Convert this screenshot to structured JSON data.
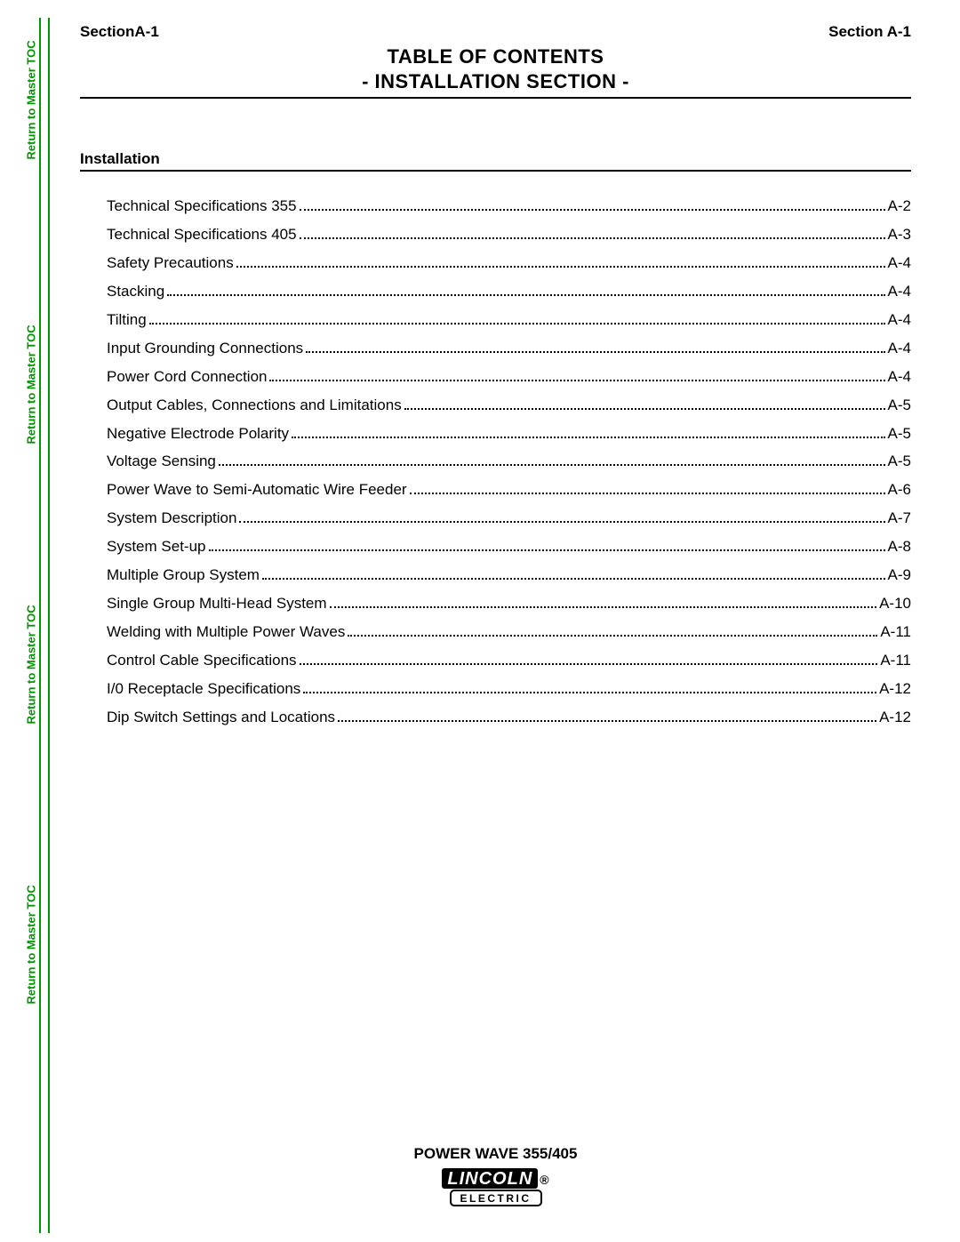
{
  "colors": {
    "accent": "#009600",
    "text": "#000000",
    "background": "#ffffff"
  },
  "typography": {
    "base_font": "Arial, Helvetica, sans-serif",
    "title_fontsize_pt": 17,
    "header_fontsize_pt": 13,
    "body_fontsize_pt": 13
  },
  "header": {
    "left": "SectionA-1",
    "right": "Section A-1",
    "title_line1": "TABLE OF CONTENTS",
    "title_line2": "- INSTALLATION SECTION -"
  },
  "side_links": [
    "Return to Master TOC",
    "Return to Master TOC",
    "Return to Master TOC",
    "Return to Master TOC"
  ],
  "section_heading": "Installation",
  "toc": [
    {
      "title": "Technical Specifications 355",
      "page": "A-2"
    },
    {
      "title": "Technical Specifications 405",
      "page": "A-3"
    },
    {
      "title": "Safety Precautions",
      "page": "A-4"
    },
    {
      "title": "Stacking",
      "page": "A-4"
    },
    {
      "title": "Tilting",
      "page": "A-4"
    },
    {
      "title": "Input Grounding Connections",
      "page": "A-4"
    },
    {
      "title": "Power Cord Connection",
      "page": "A-4"
    },
    {
      "title": "Output Cables, Connections and Limitations",
      "page": "A-5"
    },
    {
      "title": "Negative Electrode Polarity",
      "page": "A-5"
    },
    {
      "title": "Voltage Sensing",
      "page": "A-5"
    },
    {
      "title": "Power Wave to Semi-Automatic Wire Feeder",
      "page": "A-6"
    },
    {
      "title": "System Description",
      "page": "A-7"
    },
    {
      "title": "System Set-up",
      "page": "A-8"
    },
    {
      "title": "Multiple Group System",
      "page": "A-9"
    },
    {
      "title": "Single Group Multi-Head System",
      "page": "A-10"
    },
    {
      "title": "Welding with Multiple Power Waves",
      "page": "A-11"
    },
    {
      "title": "Control Cable Specifications",
      "page": "A-11"
    },
    {
      "title": "I/0 Receptacle Specifications",
      "page": "A-12"
    },
    {
      "title": "Dip Switch Settings and Locations",
      "page": "A-12"
    }
  ],
  "footer": {
    "model": "POWER WAVE 355/405",
    "brand_top": "LINCOLN",
    "brand_reg": "®",
    "brand_bottom": "ELECTRIC"
  }
}
